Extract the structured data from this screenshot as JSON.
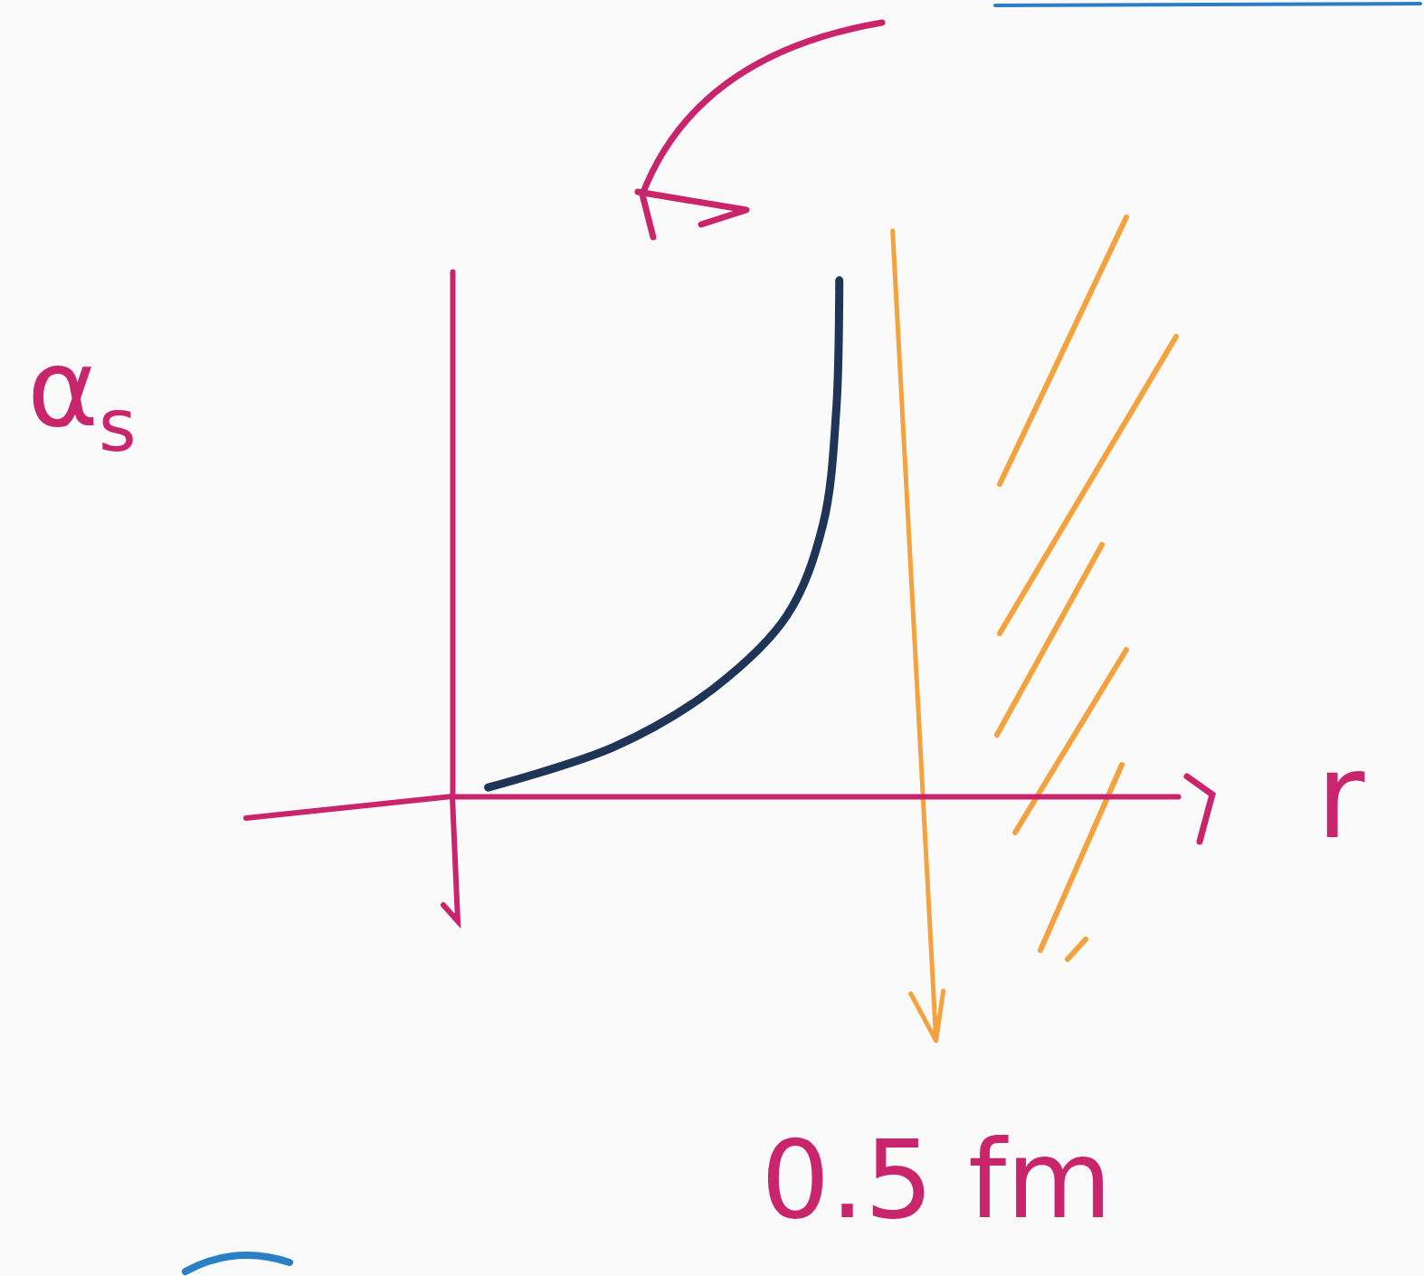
{
  "chart_data": {
    "type": "line",
    "y_label": "αs",
    "x_label": "r",
    "x": [
      0.037,
      0.168,
      0.271,
      0.346,
      0.383,
      0.397,
      0.4
    ],
    "values": [
      0.017,
      0.095,
      0.207,
      0.345,
      0.517,
      0.741,
      0.983
    ],
    "color": "#1f3558",
    "xlim": [
      0,
      0.75
    ],
    "ylim": [
      0,
      1
    ],
    "xticks": [
      {
        "value": 0.5,
        "label": "0.5 fm"
      }
    ],
    "yticks": [],
    "tick_labels": "x"
  }
}
